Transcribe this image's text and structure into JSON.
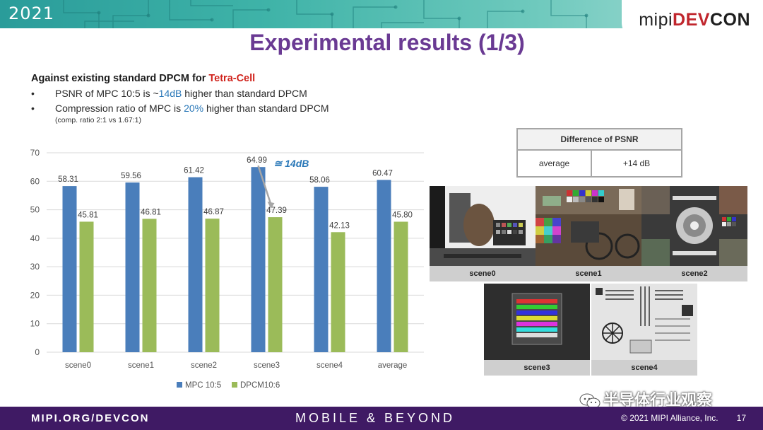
{
  "header": {
    "year": "2021",
    "logo_prefix": "mipi",
    "logo_brand_a": "DEV",
    "logo_brand_b": "CON",
    "title": "Experimental results (1/3)"
  },
  "intro": {
    "subtitle_prefix": "Against existing standard DPCM for ",
    "subtitle_highlight": "Tetra-Cell",
    "bullets": [
      {
        "pre": "PSNR of MPC 10:5 is ~",
        "highlight": "14dB",
        "post": " higher than standard DPCM"
      },
      {
        "pre": "Compression ratio of MPC is ",
        "highlight": "20%",
        "post": " higher than standard DPCM"
      }
    ],
    "note": "(comp. ratio 2:1 vs 1.67:1)"
  },
  "chart_data": {
    "type": "bar",
    "categories": [
      "scene0",
      "scene1",
      "scene2",
      "scene3",
      "scene4",
      "average"
    ],
    "series": [
      {
        "name": "MPC 10:5",
        "values": [
          58.31,
          59.56,
          61.42,
          64.99,
          58.06,
          60.47
        ],
        "color": "#4a7ebb"
      },
      {
        "name": "DPCM10:6",
        "values": [
          45.81,
          46.81,
          46.87,
          47.39,
          42.13,
          45.8
        ],
        "color": "#9bbb59"
      }
    ],
    "value_labels": [
      [
        "58.31",
        "59.56",
        "61.42",
        "64.99",
        "58.06",
        "60.47"
      ],
      [
        "45.81",
        "46.81",
        "46.87",
        "47.39",
        "42.13",
        "45.80"
      ]
    ],
    "ylim": [
      0,
      70
    ],
    "yticks": [
      0,
      10,
      20,
      30,
      40,
      50,
      60,
      70
    ],
    "grid": true,
    "legend": "bottom",
    "annotation": {
      "text": "≅ 14dB",
      "category": "scene3"
    }
  },
  "psnr_table": {
    "header": "Difference of PSNR",
    "label": "average",
    "value": "+14 dB"
  },
  "scenes": [
    "scene0",
    "scene1",
    "scene2",
    "scene3",
    "scene4"
  ],
  "footer": {
    "left": "MIPI.ORG/DEVCON",
    "middle": "MOBILE & BEYOND",
    "copyright": "© 2021 MIPI Alliance, Inc.",
    "page": "17"
  },
  "watermark": "半导体行业观察"
}
